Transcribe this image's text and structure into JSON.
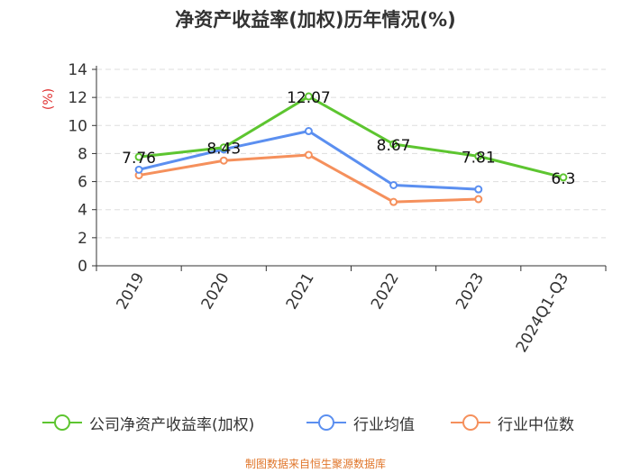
{
  "colors": {
    "company": "#5dc530",
    "industry_avg": "#5b8ff0",
    "industry_median": "#f5905c",
    "unit_label": "#e03030",
    "source": "#e0762b"
  },
  "chart_data": {
    "type": "line",
    "title": "净资产收益率(加权)历年情况(%)",
    "ylabel": "(%)",
    "categories": [
      "2019",
      "2020",
      "2021",
      "2022",
      "2023",
      "2024Q1-Q3"
    ],
    "ylim": [
      0,
      14
    ],
    "yticks": [
      0,
      2,
      4,
      6,
      8,
      10,
      12,
      14
    ],
    "grid": true,
    "legend_position": "bottom",
    "series": [
      {
        "name": "公司净资产收益率(加权)",
        "values": [
          7.76,
          8.43,
          12.07,
          8.67,
          7.81,
          6.3
        ],
        "labels": [
          "7.76",
          "8.43",
          "12.07",
          "8.67",
          "7.81",
          "6.3"
        ]
      },
      {
        "name": "行业均值",
        "values": [
          6.85,
          8.3,
          9.6,
          5.75,
          5.45,
          null
        ]
      },
      {
        "name": "行业中位数",
        "values": [
          6.45,
          7.5,
          7.9,
          4.55,
          4.75,
          null
        ]
      }
    ]
  },
  "source": "制图数据来自恒生聚源数据库"
}
